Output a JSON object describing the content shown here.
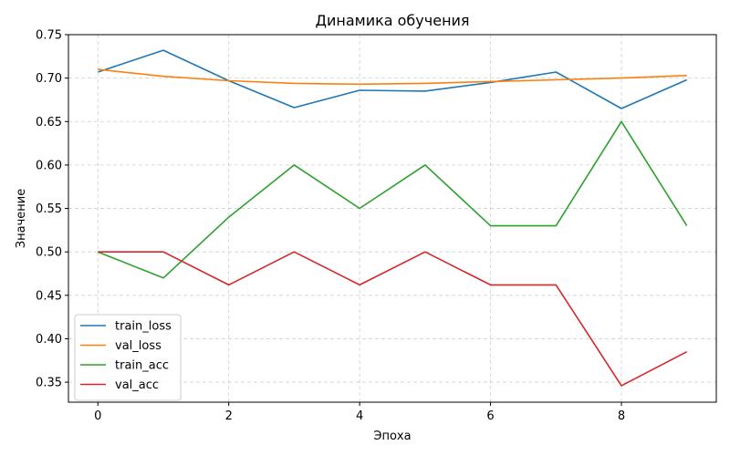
{
  "chart_data": {
    "type": "line",
    "title": "Динамика обучения",
    "xlabel": "Эпоха",
    "ylabel": "Значение",
    "x": [
      0,
      1,
      2,
      3,
      4,
      5,
      6,
      7,
      8,
      9
    ],
    "xlim": [
      -0.45,
      9.45
    ],
    "ylim": [
      0.327,
      0.75
    ],
    "xticks": [
      0,
      2,
      4,
      6,
      8
    ],
    "yticks": [
      0.35,
      0.4,
      0.45,
      0.5,
      0.55,
      0.6,
      0.65,
      0.7,
      0.75
    ],
    "grid": true,
    "legend_position": "lower-left",
    "series": [
      {
        "name": "train_loss",
        "color": "#1f77b4",
        "values": [
          0.707,
          0.732,
          0.697,
          0.666,
          0.686,
          0.685,
          0.695,
          0.707,
          0.665,
          0.698
        ]
      },
      {
        "name": "val_loss",
        "color": "#ff7f0e",
        "values": [
          0.71,
          0.702,
          0.697,
          0.694,
          0.693,
          0.694,
          0.696,
          0.698,
          0.7,
          0.703
        ]
      },
      {
        "name": "train_acc",
        "color": "#2ca02c",
        "values": [
          0.5,
          0.47,
          0.54,
          0.6,
          0.55,
          0.6,
          0.53,
          0.53,
          0.65,
          0.53
        ]
      },
      {
        "name": "val_acc",
        "color": "#d62728",
        "values": [
          0.5,
          0.5,
          0.462,
          0.5,
          0.462,
          0.5,
          0.462,
          0.462,
          0.346,
          0.385
        ]
      }
    ]
  }
}
